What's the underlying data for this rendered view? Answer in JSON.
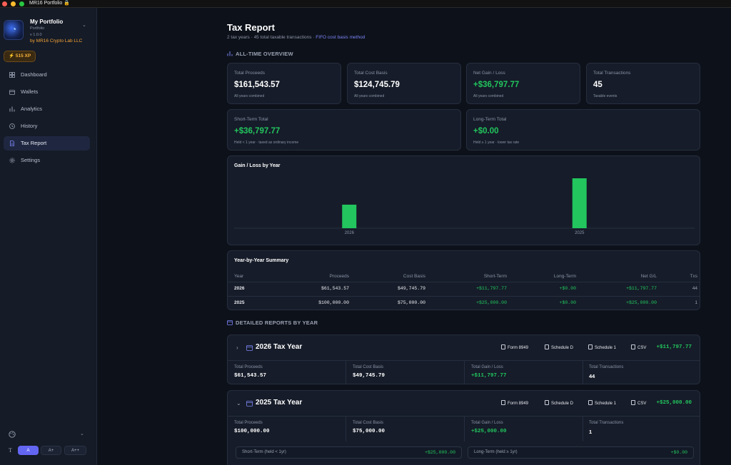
{
  "window": {
    "title": "MR16 Portfolio 🔒"
  },
  "sidebar": {
    "portfolio_name": "My Portfolio",
    "portfolio_sub": "Portfolio",
    "version": "v 1.0.0",
    "by_line": "by MR16 Crypto Lab LLC",
    "xp_badge": "515 XP",
    "items": [
      {
        "label": "Dashboard",
        "icon": "dashboard-icon"
      },
      {
        "label": "Wallets",
        "icon": "wallet-icon"
      },
      {
        "label": "Analytics",
        "icon": "bar-chart-icon"
      },
      {
        "label": "History",
        "icon": "clock-icon"
      },
      {
        "label": "Tax Report",
        "icon": "document-icon",
        "active": true
      },
      {
        "label": "Settings",
        "icon": "gear-icon"
      }
    ],
    "font_sizes": [
      "A",
      "A+",
      "A++"
    ],
    "font_size_selected": "A"
  },
  "header": {
    "title": "Tax Report",
    "subtitle": "2 tax years · 45 total taxable transactions · ",
    "subtitle_link": "FIFO cost basis method"
  },
  "overview": {
    "heading": "ALL-TIME OVERVIEW",
    "cards": {
      "proceeds": {
        "label": "Total Proceeds",
        "value": "$161,543.57",
        "sub": "All years combined"
      },
      "cost": {
        "label": "Total Cost Basis",
        "value": "$124,745.79",
        "sub": "All years combined"
      },
      "gain": {
        "label": "Net Gain / Loss",
        "value": "+$36,797.77",
        "sub": "All years combined"
      },
      "tx": {
        "label": "Total Transactions",
        "value": "45",
        "sub": "Taxable events"
      },
      "short": {
        "label": "Short-Term Total",
        "value": "+$36,797.77",
        "sub": "Held < 1 year · taxed as ordinary income"
      },
      "long": {
        "label": "Long-Term Total",
        "value": "+$0.00",
        "sub": "Held ≥ 1 year · lower tax rate"
      }
    }
  },
  "chart_data": {
    "type": "bar",
    "title": "Gain / Loss by Year",
    "categories": [
      "2025",
      "2026"
    ],
    "values": [
      25000.0,
      11797.77
    ],
    "color": "#22c55e",
    "grid": false
  },
  "summary": {
    "title": "Year-by-Year Summary",
    "columns": [
      "Year",
      "Proceeds",
      "Cost Basis",
      "Short-Term",
      "Long-Term",
      "Net G/L",
      "Txs"
    ],
    "rows": [
      {
        "year": "2026",
        "proceeds": "$61,543.57",
        "cost": "$49,745.79",
        "short": "+$11,797.77",
        "long": "+$0.00",
        "net": "+$11,797.77",
        "txs": "44"
      },
      {
        "year": "2025",
        "proceeds": "$100,000.00",
        "cost": "$75,000.00",
        "short": "+$25,000.00",
        "long": "+$0.00",
        "net": "+$25,000.00",
        "txs": "1"
      }
    ]
  },
  "detailed": {
    "heading": "DETAILED REPORTS BY YEAR",
    "buttons": {
      "form": "Form 8949",
      "schedd": "Schedule D",
      "sched1": "Schedule 1",
      "csv": "CSV"
    },
    "stat_labels": {
      "proceeds": "Total Proceeds",
      "cost": "Total Cost Basis",
      "gain": "Total Gain / Loss",
      "tx": "Total Transactions"
    },
    "years": [
      {
        "title": "2026 Tax Year",
        "net": "+$11,797.77",
        "proceeds": "$61,543.57",
        "cost": "$49,745.79",
        "gain": "+$11,797.77",
        "tx": "44",
        "expanded": false
      },
      {
        "title": "2025 Tax Year",
        "net": "+$25,000.00",
        "proceeds": "$100,000.00",
        "cost": "$75,000.00",
        "gain": "+$25,000.00",
        "tx": "1",
        "expanded": true,
        "short_label": "Short-Term (held < 1yr)",
        "short_value": "+$25,000.00",
        "long_label": "Long-Term (held ≥ 1yr)",
        "long_value": "+$0.00"
      }
    ]
  }
}
